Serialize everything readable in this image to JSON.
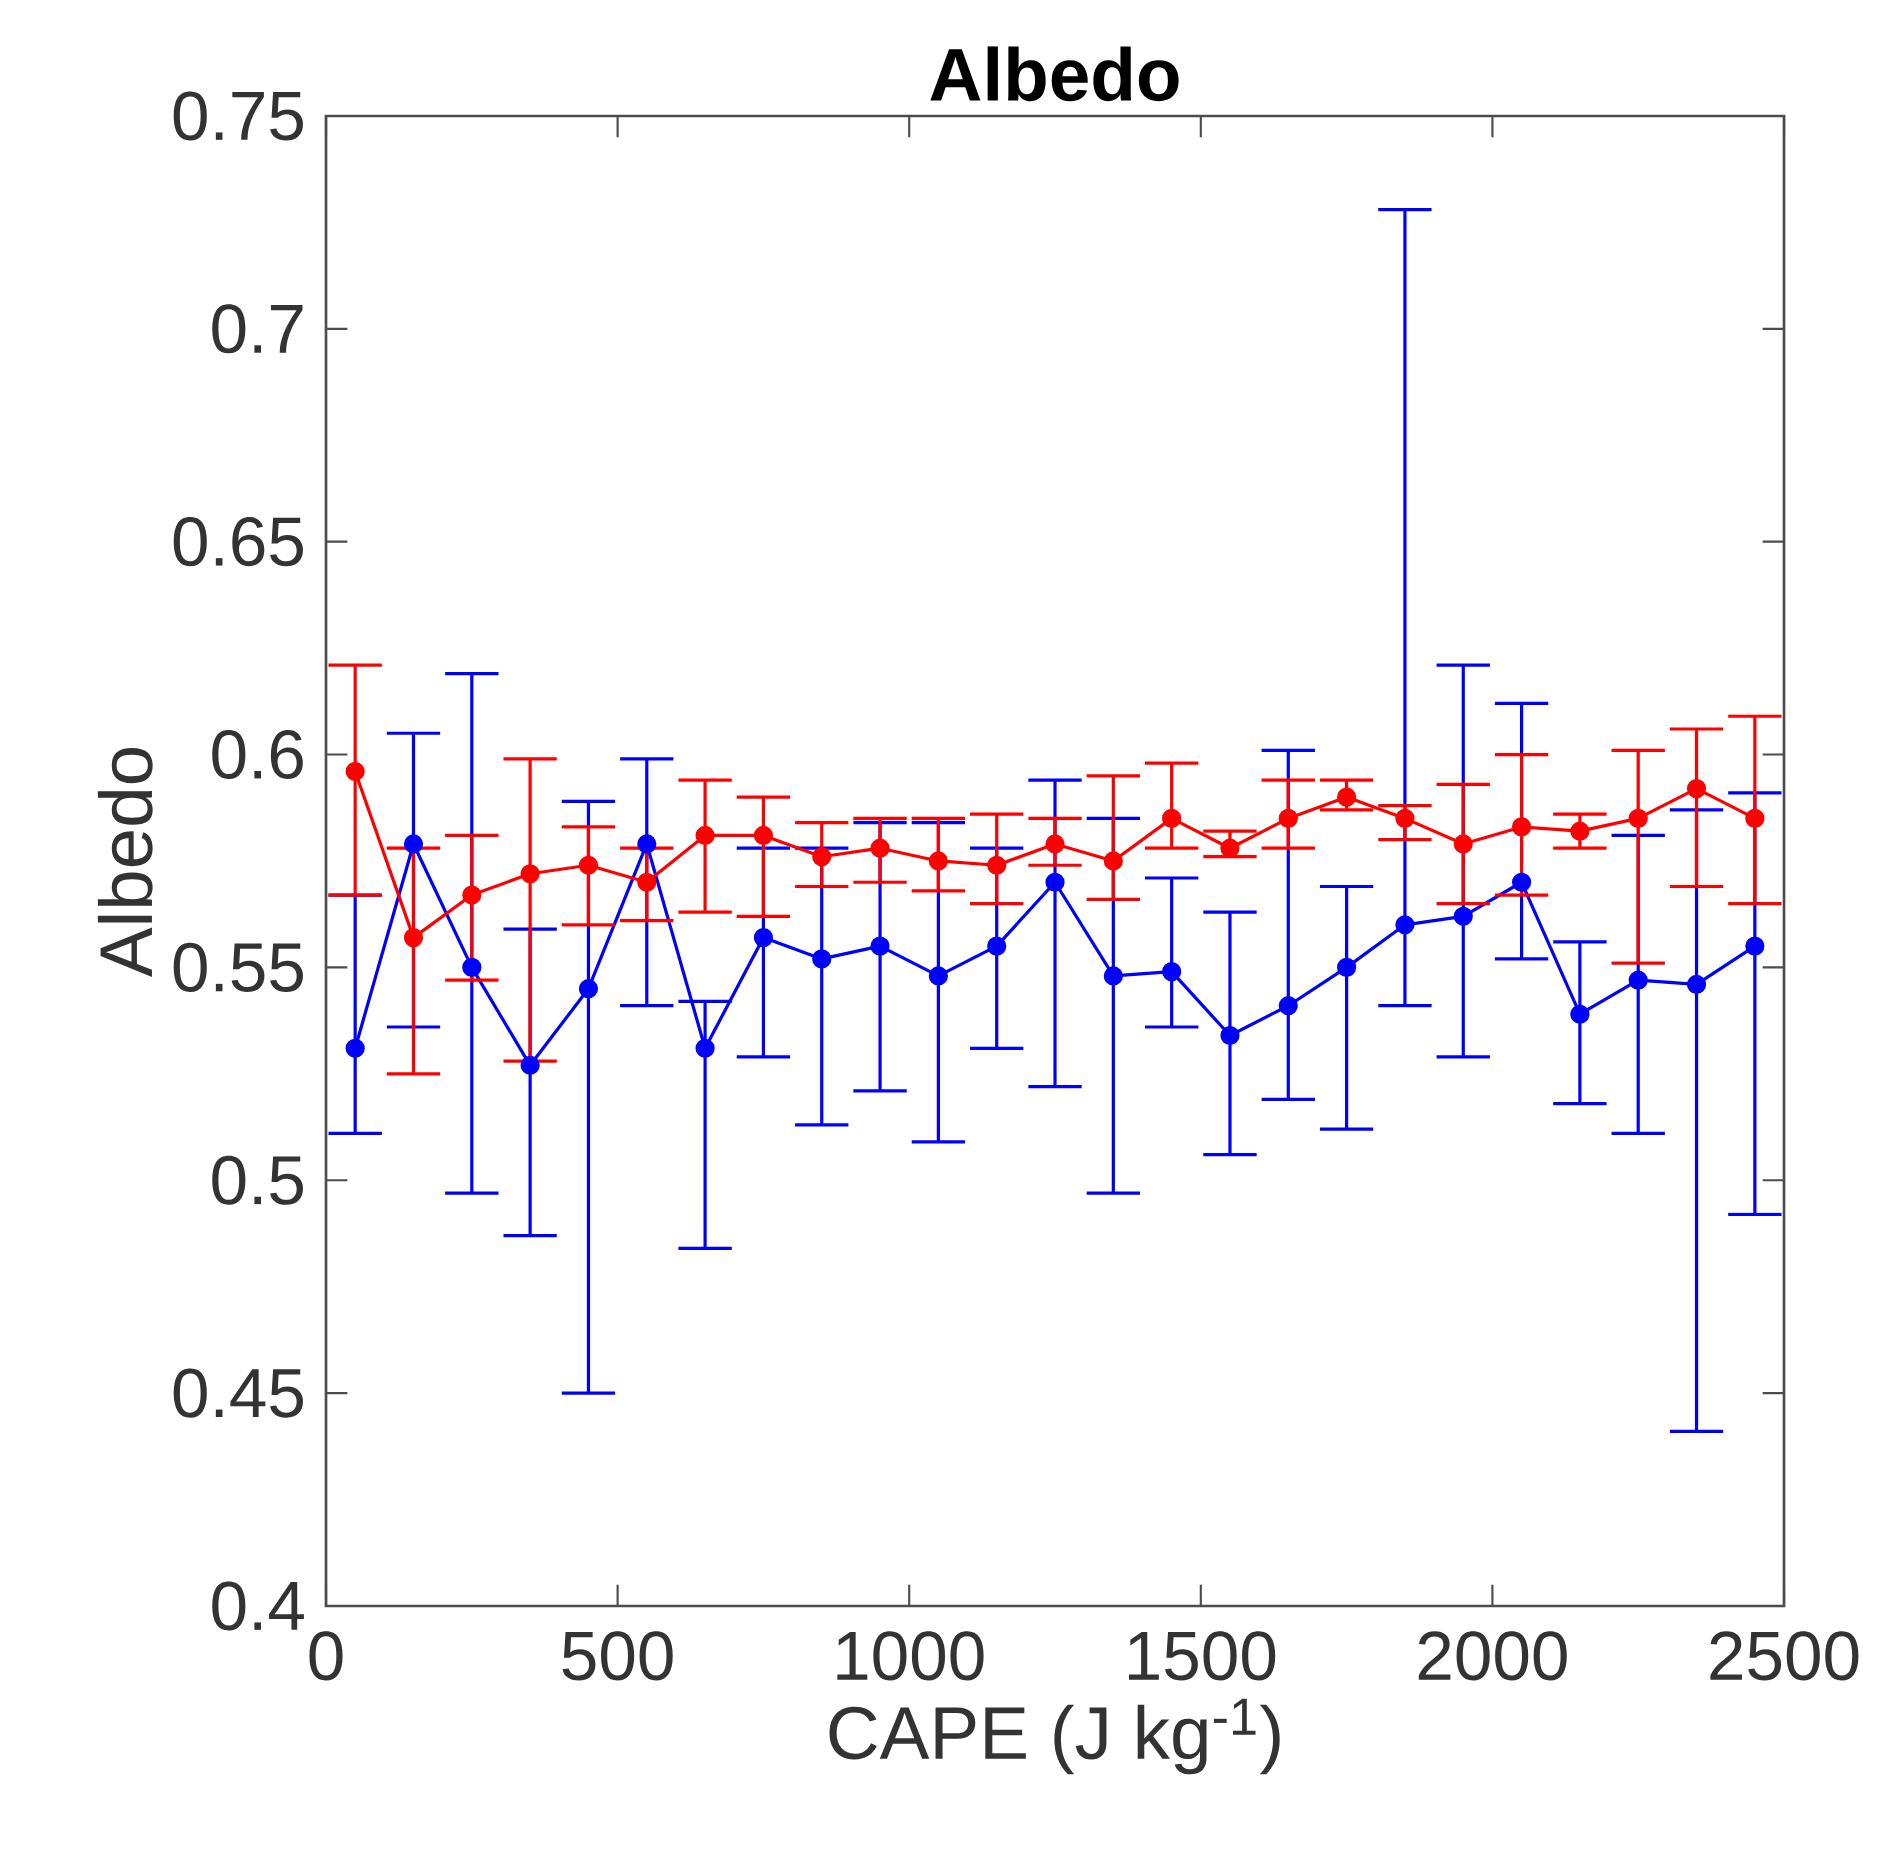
{
  "chart_data": {
    "type": "line",
    "title": "Albedo",
    "xlabel": "CAPE (J kg$^{-1}$)",
    "ylabel": "Albedo",
    "x": [
      50,
      150,
      250,
      350,
      450,
      550,
      650,
      750,
      850,
      950,
      1050,
      1150,
      1250,
      1350,
      1450,
      1550,
      1650,
      1750,
      1850,
      1950,
      2050,
      2150,
      2250,
      2350,
      2450
    ],
    "series": [
      {
        "color": "#0000ff",
        "values": [
          0.531,
          0.579,
          0.55,
          0.527,
          0.545,
          0.579,
          0.531,
          0.557,
          0.552,
          0.555,
          0.548,
          0.555,
          0.57,
          0.548,
          0.549,
          0.534,
          0.541,
          0.55,
          0.56,
          0.562,
          0.57,
          0.539,
          0.547,
          0.546,
          0.555
        ],
        "errors": [
          [
            0.511,
            0.567
          ],
          [
            0.536,
            0.605
          ],
          [
            0.497,
            0.619
          ],
          [
            0.487,
            0.559
          ],
          [
            0.45,
            0.589
          ],
          [
            0.541,
            0.599
          ],
          [
            0.484,
            0.542
          ],
          [
            0.529,
            0.578
          ],
          [
            0.513,
            0.578
          ],
          [
            0.521,
            0.584
          ],
          [
            0.509,
            0.584
          ],
          [
            0.531,
            0.578
          ],
          [
            0.522,
            0.594
          ],
          [
            0.497,
            0.585
          ],
          [
            0.536,
            0.571
          ],
          [
            0.506,
            0.563
          ],
          [
            0.519,
            0.601
          ],
          [
            0.512,
            0.569
          ],
          [
            0.541,
            0.728
          ],
          [
            0.529,
            0.621
          ],
          [
            0.552,
            0.612
          ],
          [
            0.518,
            0.556
          ],
          [
            0.511,
            0.581
          ],
          [
            0.441,
            0.587
          ],
          [
            0.492,
            0.591
          ]
        ]
      },
      {
        "color": "#ff0000",
        "values": [
          0.596,
          0.557,
          0.567,
          0.572,
          0.574,
          0.57,
          0.581,
          0.581,
          0.576,
          0.578,
          0.575,
          0.574,
          0.579,
          0.575,
          0.585,
          0.578,
          0.585,
          0.59,
          0.585,
          0.579,
          0.583,
          0.582,
          0.585,
          0.592,
          0.585
        ],
        "errors": [
          [
            0.567,
            0.621
          ],
          [
            0.525,
            0.578
          ],
          [
            0.547,
            0.581
          ],
          [
            0.528,
            0.599
          ],
          [
            0.56,
            0.583
          ],
          [
            0.561,
            0.578
          ],
          [
            0.563,
            0.594
          ],
          [
            0.562,
            0.59
          ],
          [
            0.569,
            0.584
          ],
          [
            0.57,
            0.585
          ],
          [
            0.568,
            0.585
          ],
          [
            0.565,
            0.586
          ],
          [
            0.574,
            0.585
          ],
          [
            0.566,
            0.595
          ],
          [
            0.578,
            0.598
          ],
          [
            0.576,
            0.582
          ],
          [
            0.578,
            0.594
          ],
          [
            0.587,
            0.594
          ],
          [
            0.58,
            0.588
          ],
          [
            0.565,
            0.593
          ],
          [
            0.567,
            0.6
          ],
          [
            0.578,
            0.586
          ],
          [
            0.551,
            0.601
          ],
          [
            0.569,
            0.606
          ],
          [
            0.565,
            0.609
          ]
        ]
      }
    ],
    "xlim": [
      0,
      2500
    ],
    "xticks": [
      0,
      500,
      1000,
      1500,
      2000,
      2500
    ],
    "ylim": [
      0.4,
      0.75
    ],
    "yticks": [
      0.4,
      0.45,
      0.5,
      0.55,
      0.6,
      0.65,
      0.7,
      0.75
    ],
    "marker": "circle",
    "line_style": "solid"
  }
}
